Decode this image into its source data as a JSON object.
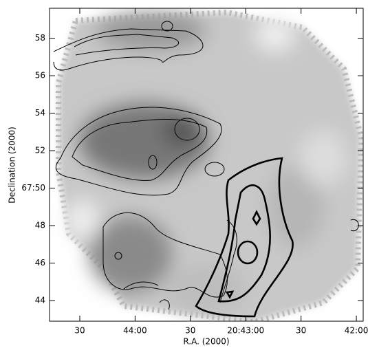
{
  "chart_data": {
    "type": "image",
    "xlabel": "R.A. (2000)",
    "ylabel": "Declination (2000)",
    "xlim": [
      166.4,
      -3.7
    ],
    "ylim": [
      42.9,
      59.6
    ],
    "xticks": [
      {
        "value": 150,
        "label": "30"
      },
      {
        "value": 120,
        "label": "44:00"
      },
      {
        "value": 90,
        "label": "30"
      },
      {
        "value": 60,
        "label": "20:43:00"
      },
      {
        "value": 30,
        "label": "30"
      },
      {
        "value": 0,
        "label": "42:00"
      }
    ],
    "yticks": [
      44,
      46,
      48,
      {
        "value": 50,
        "label": "67:50"
      },
      52,
      54,
      56,
      58
    ]
  }
}
